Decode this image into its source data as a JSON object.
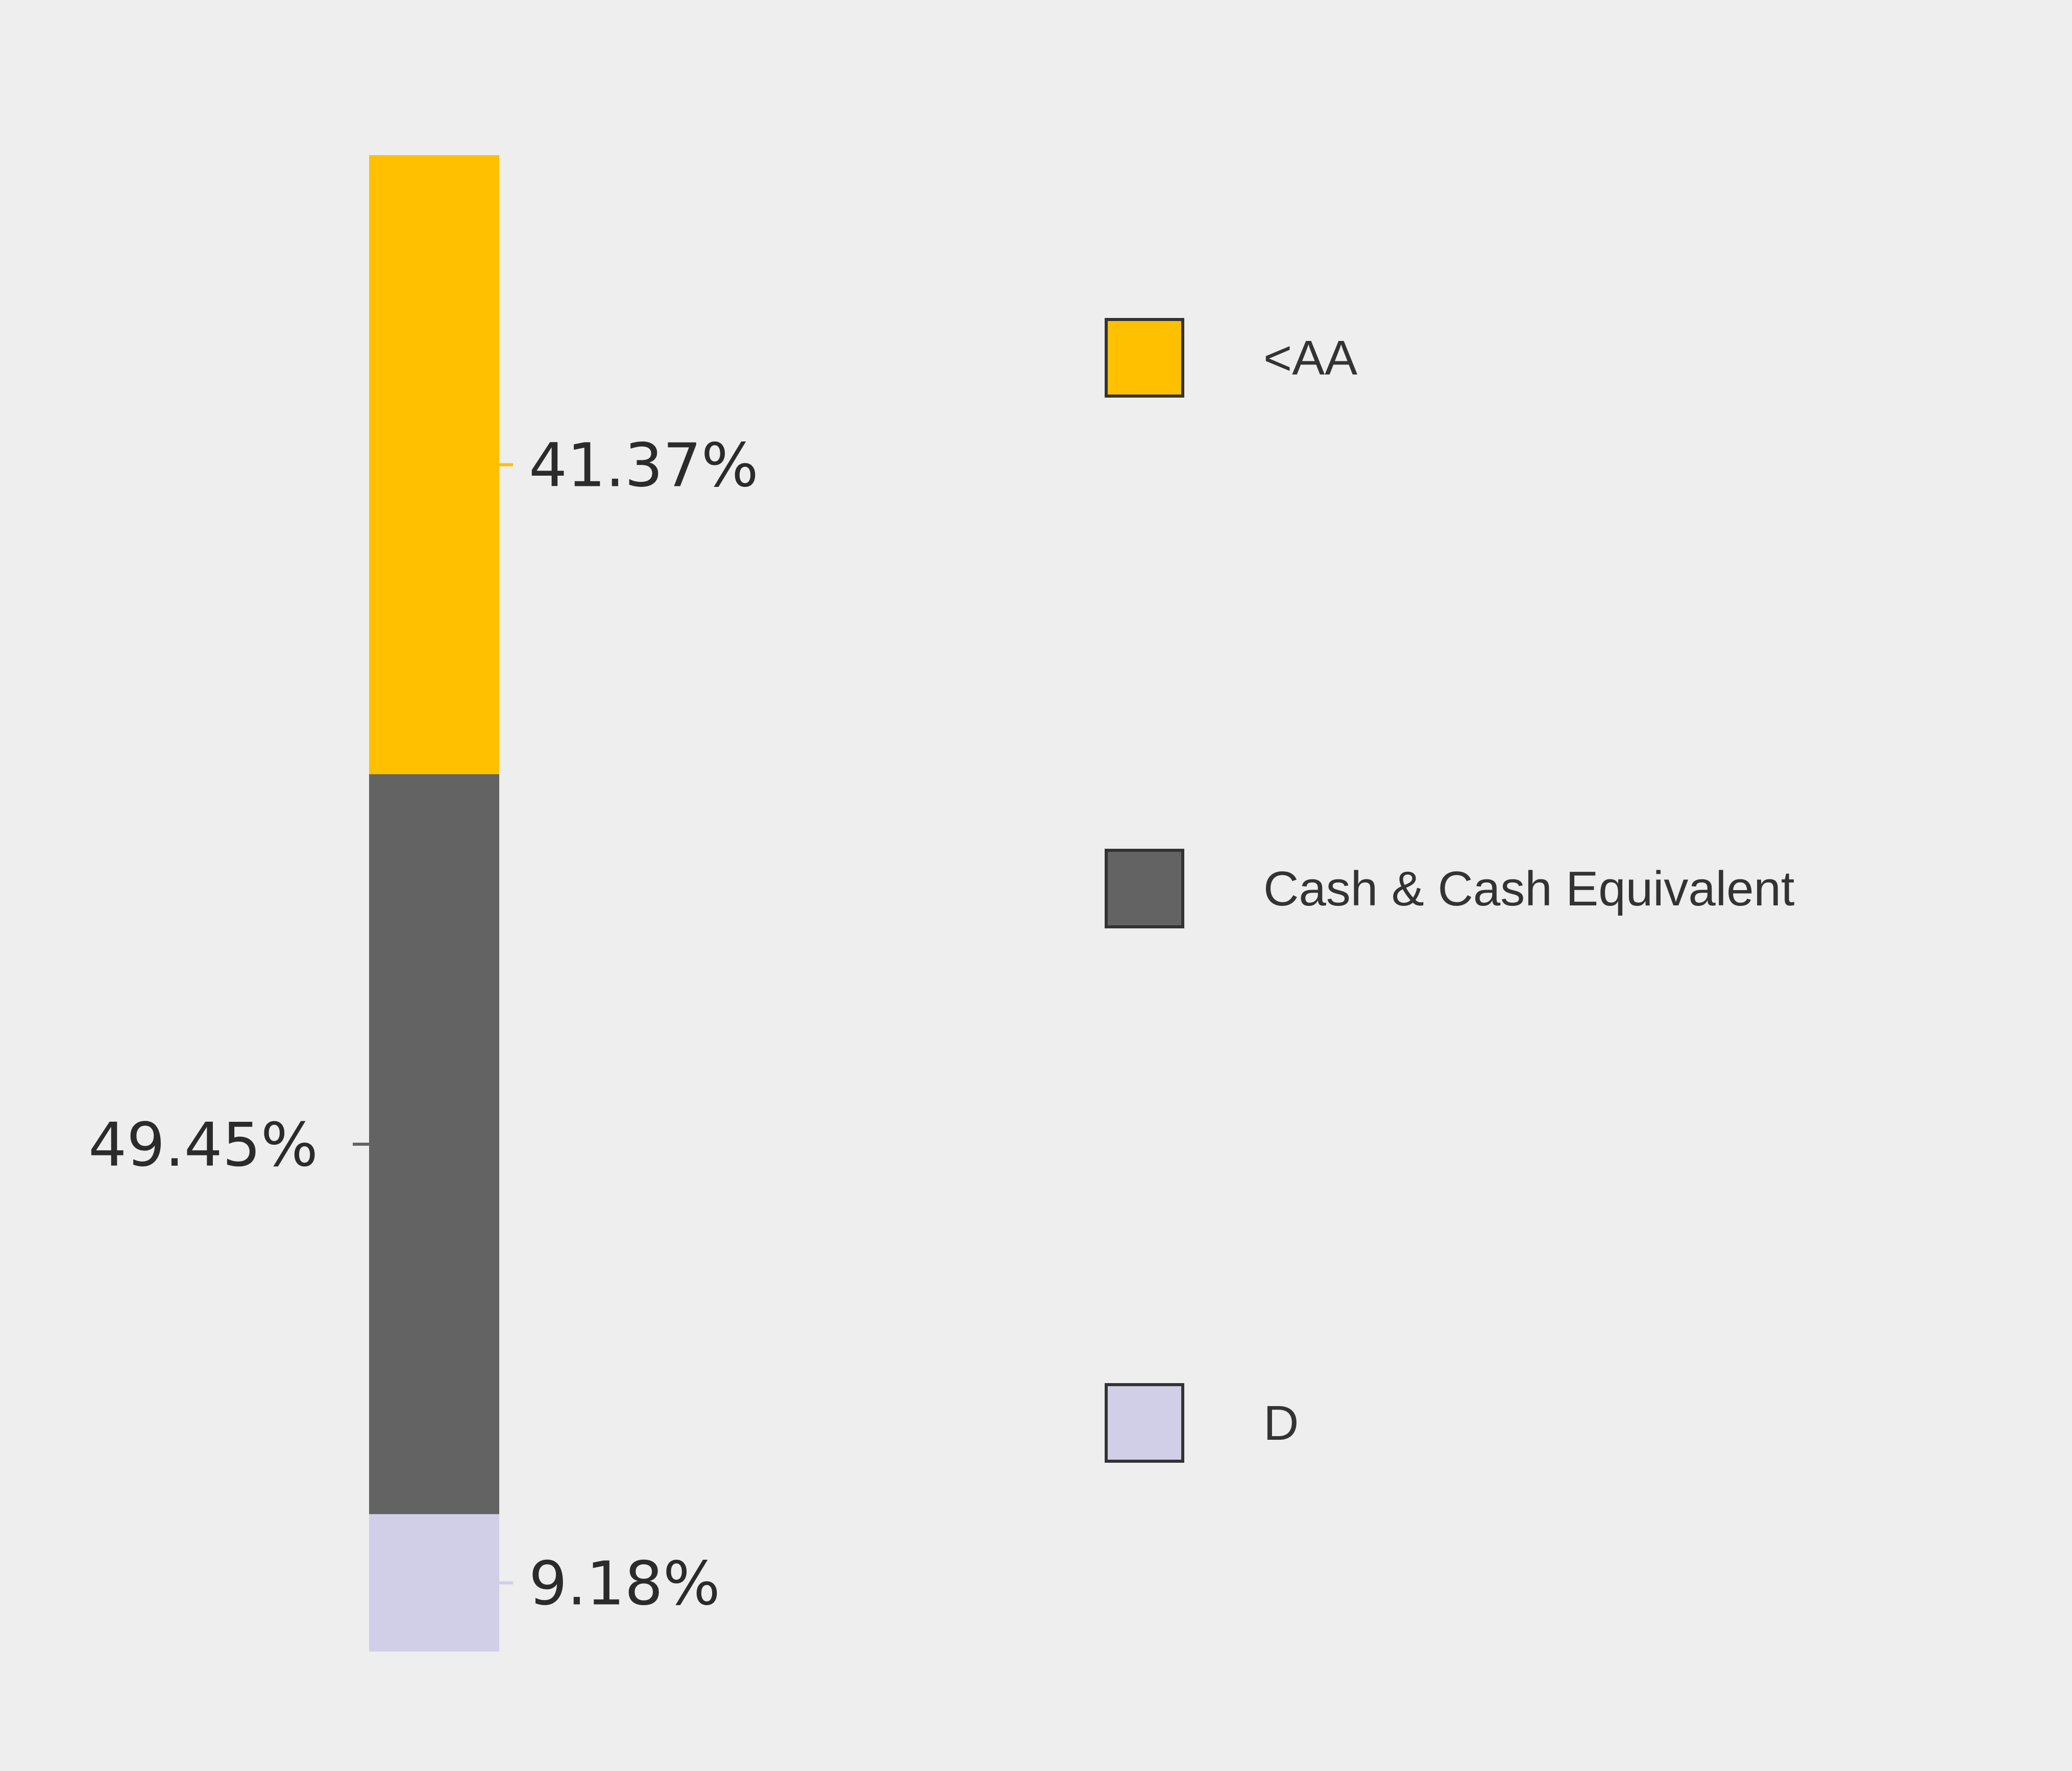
{
  "chart_data": {
    "type": "bar",
    "orientation": "vertical-stacked",
    "categories": [
      ""
    ],
    "series": [
      {
        "name": "<AA",
        "values": [
          41.37
        ],
        "label": "41.37%",
        "color": "#FFC000"
      },
      {
        "name": "Cash & Cash Equivalent",
        "values": [
          49.45
        ],
        "label": "49.45%",
        "color": "#636363"
      },
      {
        "name": "D",
        "values": [
          9.18
        ],
        "label": "9.18%",
        "color": "#D1CEE8"
      }
    ],
    "stack_order": "top-to-bottom",
    "ylim": [
      0,
      100
    ],
    "grid": false,
    "legend": {
      "position": "right"
    },
    "background": "#EDEEED"
  }
}
